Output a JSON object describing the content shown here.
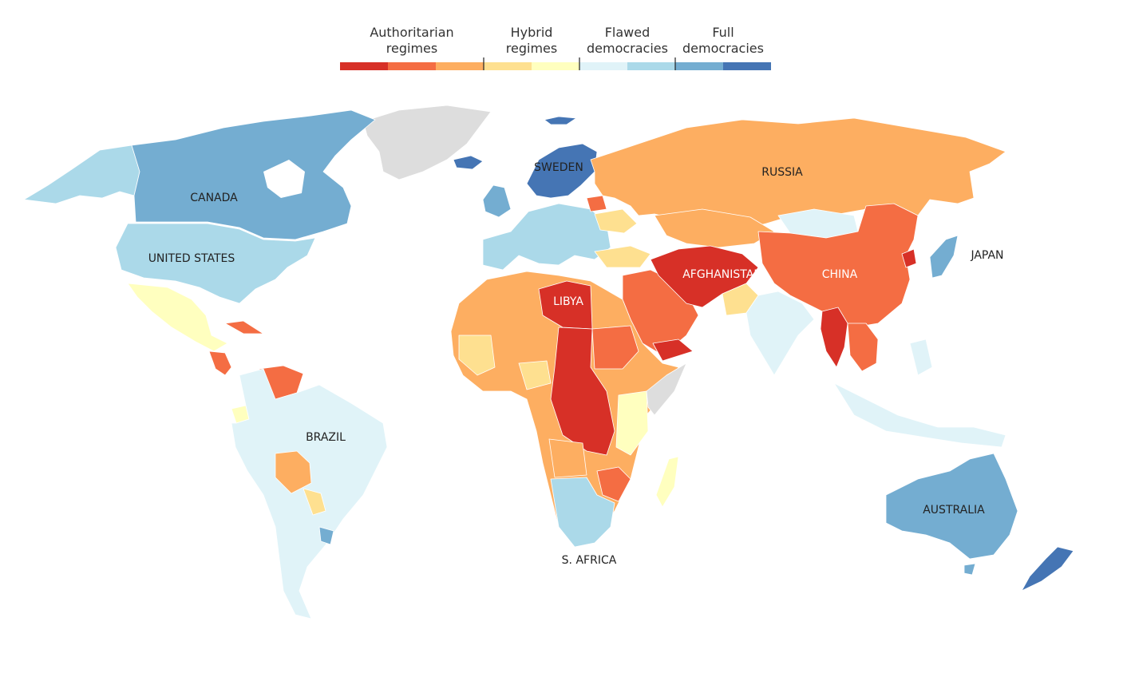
{
  "legend": {
    "groups": [
      {
        "line1": "Authoritarian",
        "line2": "regimes"
      },
      {
        "line1": "Hybrid",
        "line2": "regimes"
      },
      {
        "line1": "Flawed",
        "line2": "democracies"
      },
      {
        "line1": "Full",
        "line2": "democracies"
      }
    ],
    "colors": [
      "#d73027",
      "#f46d43",
      "#fdae61",
      "#fee090",
      "#ffffbf",
      "#e0f3f8",
      "#abd9e9",
      "#74add1",
      "#4575b4"
    ]
  },
  "regime_colors": {
    "authoritarian_1": "#d73027",
    "authoritarian_2": "#f46d43",
    "authoritarian_3": "#fdae61",
    "hybrid_1": "#fee090",
    "hybrid_2": "#ffffbf",
    "flawed_1": "#e0f3f8",
    "flawed_2": "#abd9e9",
    "full_1": "#74add1",
    "full_2": "#4575b4",
    "no_data": "#dddddd"
  },
  "labels": {
    "canada": "CANADA",
    "united_states": "UNITED STATES",
    "brazil": "BRAZIL",
    "sweden": "SWEDEN",
    "russia": "RUSSIA",
    "libya": "LIBYA",
    "afghanistan": "AFGHANISTAN",
    "china": "CHINA",
    "japan": "JAPAN",
    "australia": "AUSTRALIA",
    "south_africa": "S. AFRICA"
  }
}
